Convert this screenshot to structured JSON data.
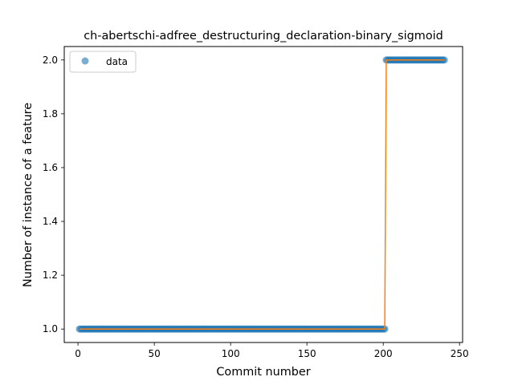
{
  "chart_data": {
    "type": "scatter",
    "title": "ch-abertschi-adfree_destructuring_declaration-binary_sigmoid",
    "xlabel": "Commit number",
    "ylabel": "Number of instance of a feature",
    "xlim": [
      -9,
      252
    ],
    "ylim": [
      0.95,
      2.05
    ],
    "xticks": [
      0,
      50,
      100,
      150,
      200,
      250
    ],
    "yticks": [
      1.0,
      1.2,
      1.4,
      1.6,
      1.8,
      2.0
    ],
    "xtick_labels": [
      "0",
      "50",
      "100",
      "150",
      "200",
      "250"
    ],
    "ytick_labels": [
      "1.0",
      "1.2",
      "1.4",
      "1.6",
      "1.8",
      "2.0"
    ],
    "legend": {
      "placement": "top-left",
      "entries": [
        "data"
      ]
    },
    "series": [
      {
        "name": "data",
        "kind": "points",
        "color": "#1f77b4",
        "segments": [
          {
            "x_start": 1,
            "x_end": 201,
            "y": 1.0
          },
          {
            "x_start": 202,
            "x_end": 240,
            "y": 2.0
          }
        ]
      },
      {
        "kind": "line",
        "color": "#ff7f0e",
        "x": [
          1,
          201,
          202,
          240
        ],
        "y": [
          1.0,
          1.0,
          2.0,
          2.0
        ]
      }
    ]
  }
}
